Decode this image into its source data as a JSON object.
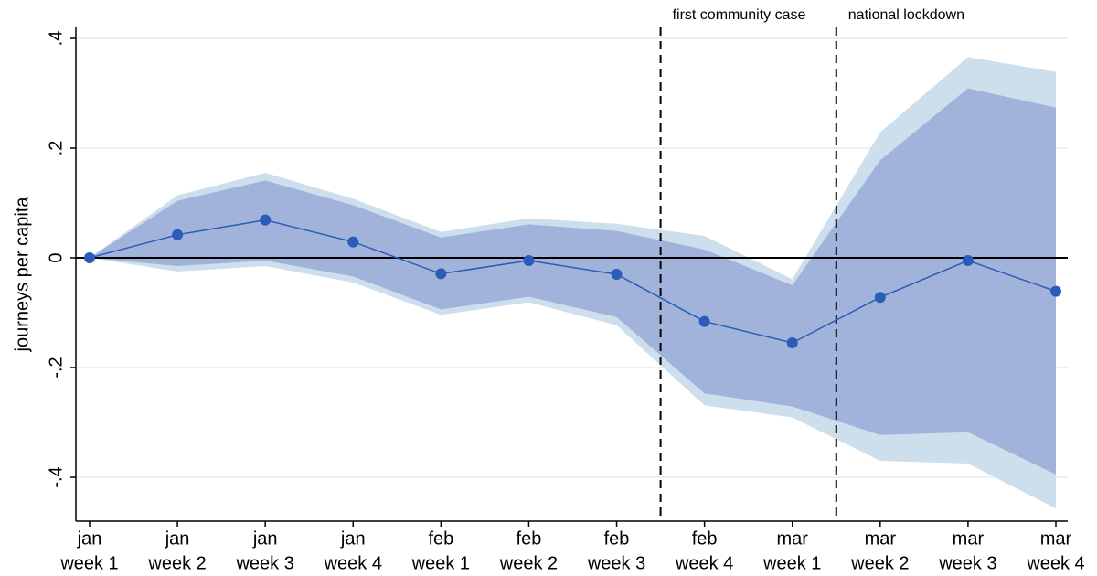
{
  "chart_data": {
    "type": "line",
    "ylabel": "journeys per capita",
    "categories": [
      [
        "jan",
        "week 1"
      ],
      [
        "jan",
        "week 2"
      ],
      [
        "jan",
        "week 3"
      ],
      [
        "jan",
        "week 4"
      ],
      [
        "feb",
        "week 1"
      ],
      [
        "feb",
        "week 2"
      ],
      [
        "feb",
        "week 3"
      ],
      [
        "feb",
        "week 4"
      ],
      [
        "mar",
        "week 1"
      ],
      [
        "mar",
        "week 2"
      ],
      [
        "mar",
        "week 3"
      ],
      [
        "mar",
        "week 4"
      ]
    ],
    "line": {
      "color": "#2a5cb8",
      "values": [
        0,
        0.042,
        0.069,
        0.029,
        -0.029,
        -0.005,
        -0.03,
        -0.116,
        -0.155,
        -0.072,
        -0.005,
        -0.061
      ]
    },
    "bands": [
      {
        "color": "#cddfed",
        "lower": [
          0,
          -0.025,
          -0.015,
          -0.045,
          -0.104,
          -0.081,
          -0.123,
          -0.269,
          -0.291,
          -0.37,
          -0.375,
          -0.457
        ],
        "upper": [
          0,
          0.114,
          0.155,
          0.108,
          0.047,
          0.072,
          0.062,
          0.04,
          -0.039,
          0.229,
          0.366,
          0.339
        ]
      },
      {
        "color": "#a1b3da",
        "lower": [
          0,
          -0.015,
          -0.005,
          -0.034,
          -0.094,
          -0.071,
          -0.108,
          -0.247,
          -0.271,
          -0.323,
          -0.318,
          -0.395
        ],
        "upper": [
          0,
          0.104,
          0.141,
          0.096,
          0.037,
          0.061,
          0.049,
          0.015,
          -0.05,
          0.178,
          0.309,
          0.274
        ]
      }
    ],
    "hline": 0,
    "annotations": [
      {
        "text": "first community case",
        "x": 6.5
      },
      {
        "text": "national lockdown",
        "x": 8.5
      }
    ],
    "ylim": [
      -0.48,
      0.42
    ],
    "yticks": [
      {
        "value": -0.4,
        "label": "-.4"
      },
      {
        "value": -0.2,
        "label": "-.2"
      },
      0,
      {
        "value": 0.2,
        "label": ".2"
      },
      {
        "value": 0.4,
        "label": ".4"
      }
    ],
    "grid": true
  }
}
